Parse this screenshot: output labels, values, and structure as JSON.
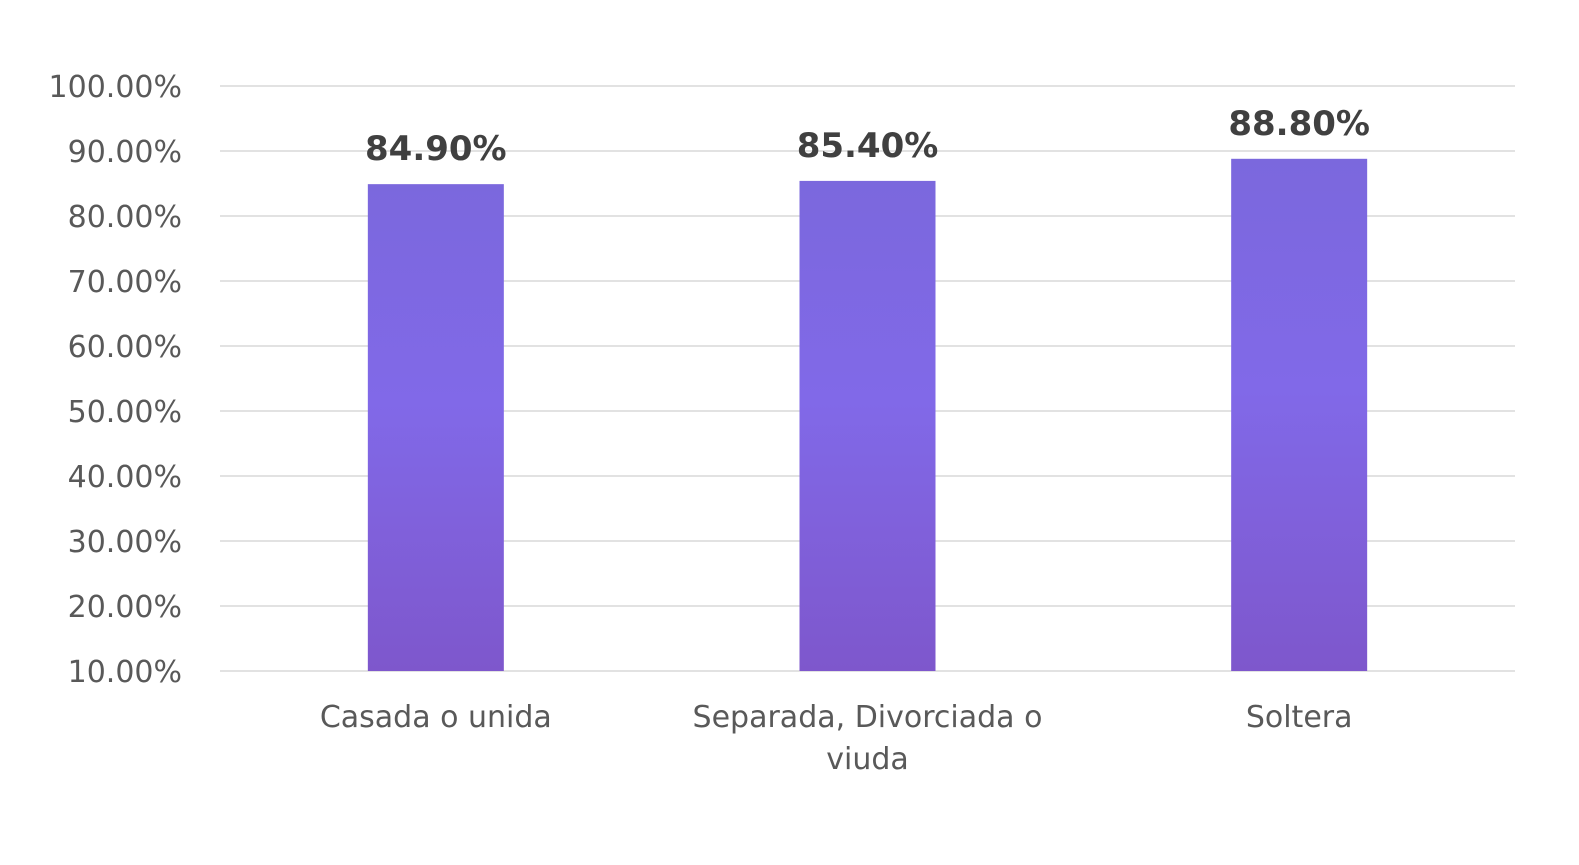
{
  "chart_data": {
    "type": "bar",
    "title": "",
    "xlabel": "",
    "ylabel": "",
    "categories": [
      [
        "Casada o unida"
      ],
      [
        "Separada, Divorciada o",
        "viuda"
      ],
      [
        "Soltera"
      ]
    ],
    "values": [
      84.9,
      85.4,
      88.8
    ],
    "data_labels": [
      "84.90%",
      "85.40%",
      "88.80%"
    ],
    "ylim": [
      10,
      100
    ],
    "y_ticks": [
      100,
      90,
      80,
      70,
      60,
      50,
      40,
      30,
      20,
      10
    ],
    "y_tick_labels": [
      "100.00%",
      "90.00%",
      "80.00%",
      "70.00%",
      "60.00%",
      "50.00%",
      "40.00%",
      "30.00%",
      "20.00%",
      "10.00%"
    ],
    "grid": true,
    "legend": "none",
    "colors": {
      "bar_top": "#7b68dd",
      "bar_mid": "#8169e8",
      "bar_bottom": "#7e57cc",
      "gridline": "#d9d9d9",
      "tick_text": "#595959",
      "label_text": "#404040"
    }
  }
}
